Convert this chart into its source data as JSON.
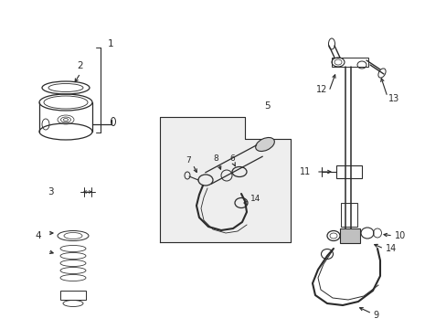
{
  "bg_color": "#ffffff",
  "line_color": "#2a2a2a",
  "light_fill": "#e0e0e0",
  "figsize": [
    4.89,
    3.6
  ],
  "dpi": 100
}
